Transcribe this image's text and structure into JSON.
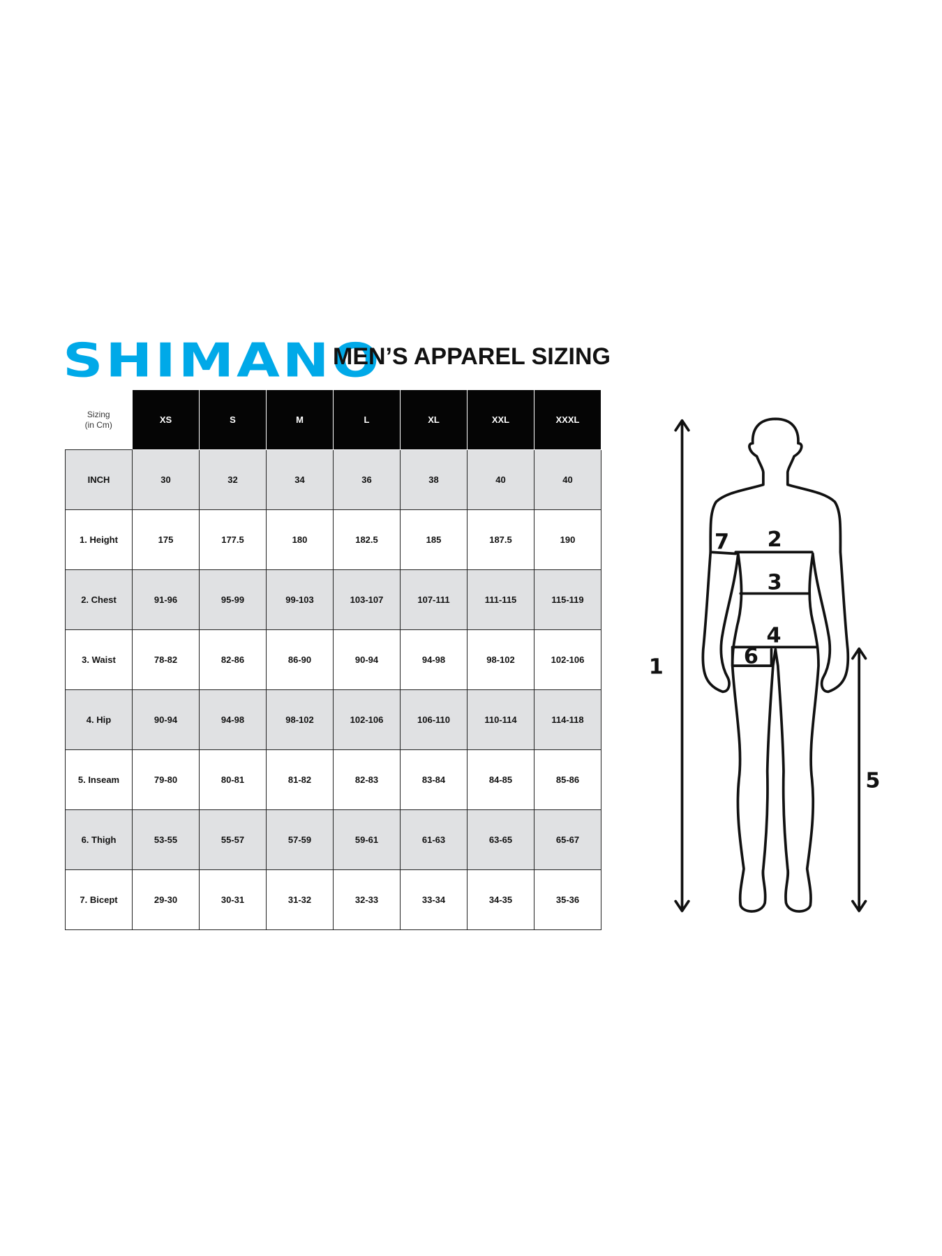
{
  "brand": {
    "logo_text": "SHIMANO",
    "color": "#00a9e8"
  },
  "title": "MEN’S APPAREL SIZING",
  "table": {
    "corner_line1": "Sizing",
    "corner_line2": "(in Cm)",
    "sizes": [
      "XS",
      "S",
      "M",
      "L",
      "XL",
      "XXL",
      "XXXL"
    ],
    "rows": [
      {
        "label": "INCH",
        "values": [
          "30",
          "32",
          "34",
          "36",
          "38",
          "40",
          "40"
        ],
        "shaded": true
      },
      {
        "label": "1. Height",
        "values": [
          "175",
          "177.5",
          "180",
          "182.5",
          "185",
          "187.5",
          "190"
        ],
        "shaded": false
      },
      {
        "label": "2. Chest",
        "values": [
          "91-96",
          "95-99",
          "99-103",
          "103-107",
          "107-111",
          "111-115",
          "115-119"
        ],
        "shaded": true
      },
      {
        "label": "3. Waist",
        "values": [
          "78-82",
          "82-86",
          "86-90",
          "90-94",
          "94-98",
          "98-102",
          "102-106"
        ],
        "shaded": false
      },
      {
        "label": "4. Hip",
        "values": [
          "90-94",
          "94-98",
          "98-102",
          "102-106",
          "106-110",
          "110-114",
          "114-118"
        ],
        "shaded": true
      },
      {
        "label": "5. Inseam",
        "values": [
          "79-80",
          "80-81",
          "81-82",
          "82-83",
          "83-84",
          "84-85",
          "85-86"
        ],
        "shaded": false
      },
      {
        "label": "6. Thigh",
        "values": [
          "53-55",
          "55-57",
          "57-59",
          "59-61",
          "61-63",
          "63-65",
          "65-67"
        ],
        "shaded": true
      },
      {
        "label": "7. Bicept",
        "values": [
          "29-30",
          "30-31",
          "31-32",
          "32-33",
          "33-34",
          "34-35",
          "35-36"
        ],
        "shaded": false
      }
    ]
  },
  "figure": {
    "labels": [
      "1",
      "2",
      "3",
      "4",
      "5",
      "6",
      "7"
    ]
  }
}
